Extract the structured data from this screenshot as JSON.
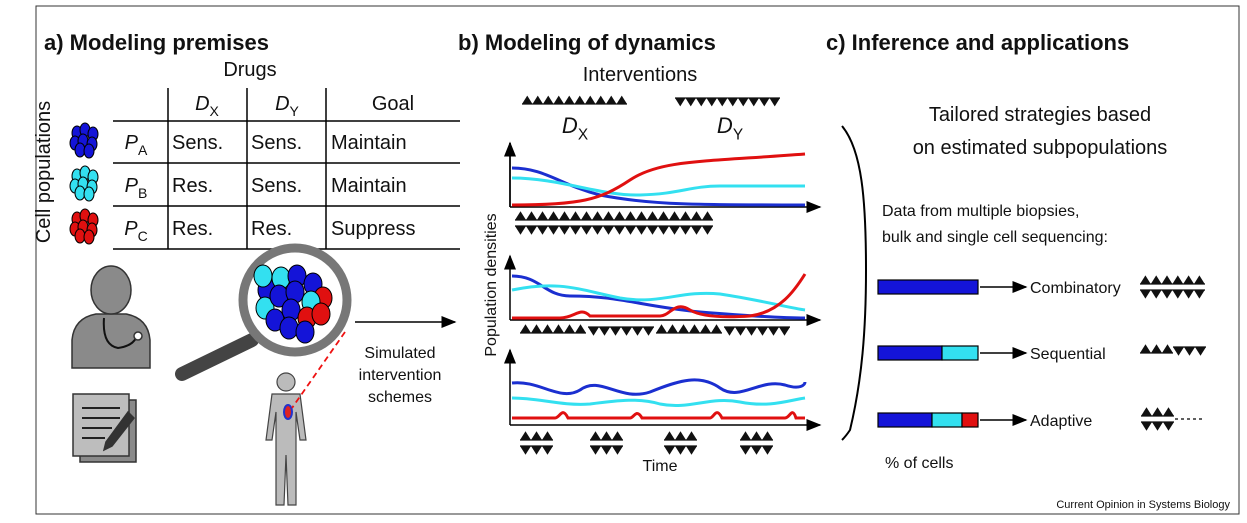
{
  "panel_a": {
    "title": "a) Modeling premises",
    "header": "Drugs",
    "row_label": "Cell populations",
    "columns": [
      {
        "name": "D",
        "sub": "X"
      },
      {
        "name": "D",
        "sub": "Y"
      },
      {
        "name": "Goal"
      }
    ],
    "rows": [
      {
        "name": "P",
        "sub": "A",
        "cells": [
          "Sens.",
          "Sens.",
          "Maintain"
        ]
      },
      {
        "name": "P",
        "sub": "B",
        "cells": [
          "Res.",
          "Sens.",
          "Maintain"
        ]
      },
      {
        "name": "P",
        "sub": "C",
        "cells": [
          "Res.",
          "Res.",
          "Suppress"
        ]
      }
    ],
    "arrow_label": [
      "Simulated",
      "intervention",
      "schemes"
    ]
  },
  "panel_b": {
    "title": "b) Modeling of dynamics",
    "interventions": "Interventions",
    "drugs": [
      {
        "name": "D",
        "sub": "X"
      },
      {
        "name": "D",
        "sub": "Y"
      }
    ],
    "ylabel": "Population densities",
    "xlabel": "Time"
  },
  "panel_c": {
    "title": "c) Inference and applications",
    "heading": [
      "Tailored strategies based",
      "on estimated subpopulations"
    ],
    "data_note": [
      "Data from multiple biopsies,",
      "bulk and single cell sequencing:"
    ],
    "strategies": [
      "Combinatory",
      "Sequential",
      "Adaptive"
    ],
    "bar_label": "% of cells"
  },
  "footer": "Current Opinion in Systems Biology"
}
